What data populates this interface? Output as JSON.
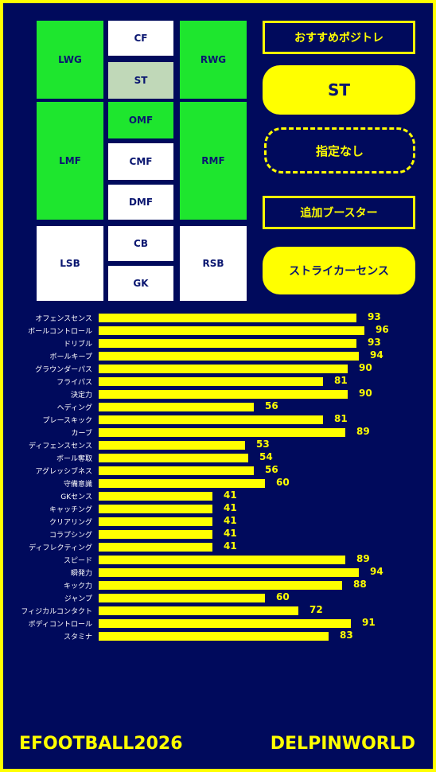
{
  "positions": {
    "cf": "CF",
    "st": "ST",
    "lwg": "LWG",
    "rwg": "RWG",
    "omf": "OMF",
    "cmf": "CMF",
    "dmf": "DMF",
    "lmf": "LMF",
    "rmf": "RMF",
    "lsb": "LSB",
    "cb": "CB",
    "gk": "GK",
    "rsb": "RSB"
  },
  "panel": {
    "recommended_label": "おすすめポジトレ",
    "position_value": "ST",
    "unassigned_label": "指定なし",
    "add_booster_label": "追加ブースター",
    "booster_value": "ストライカーセンス"
  },
  "colors": {
    "background": "#000a5c",
    "accent": "#ffff00",
    "position_green": "#1ee62e",
    "position_selected": "#c0d8b8"
  },
  "stats": [
    {
      "label": "オフェンスセンス",
      "value": 93
    },
    {
      "label": "ボールコントロール",
      "value": 96
    },
    {
      "label": "ドリブル",
      "value": 93
    },
    {
      "label": "ボールキープ",
      "value": 94
    },
    {
      "label": "グラウンダーパス",
      "value": 90
    },
    {
      "label": "フライパス",
      "value": 81
    },
    {
      "label": "決定力",
      "value": 90
    },
    {
      "label": "ヘディング",
      "value": 56
    },
    {
      "label": "プレースキック",
      "value": 81
    },
    {
      "label": "カーブ",
      "value": 89
    },
    {
      "label": "ディフェンスセンス",
      "value": 53
    },
    {
      "label": "ボール奪取",
      "value": 54
    },
    {
      "label": "アグレッシブネス",
      "value": 56
    },
    {
      "label": "守備意識",
      "value": 60
    },
    {
      "label": "GKセンス",
      "value": 41
    },
    {
      "label": "キャッチング",
      "value": 41
    },
    {
      "label": "クリアリング",
      "value": 41
    },
    {
      "label": "コラプシング",
      "value": 41
    },
    {
      "label": "ディフレクティング",
      "value": 41
    },
    {
      "label": "スピード",
      "value": 89
    },
    {
      "label": "瞬発力",
      "value": 94
    },
    {
      "label": "キック力",
      "value": 88
    },
    {
      "label": "ジャンプ",
      "value": 60
    },
    {
      "label": "フィジカルコンタクト",
      "value": 72
    },
    {
      "label": "ボディコントロール",
      "value": 91
    },
    {
      "label": "スタミナ",
      "value": 83
    }
  ],
  "footer": {
    "left": "EFOOTBALL2026",
    "right": "DELPINWORLD"
  }
}
